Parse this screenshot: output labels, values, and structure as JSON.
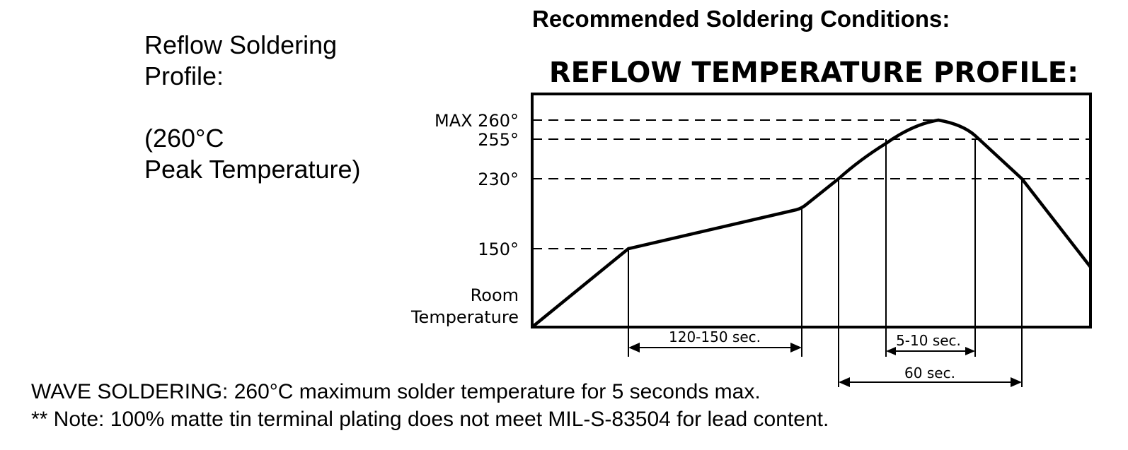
{
  "header": {
    "title": "Recommended Soldering Conditions:"
  },
  "side_note": {
    "line1": "Reflow Soldering",
    "line2": "Profile:",
    "line3": "(260°C",
    "line4": "Peak Temperature)"
  },
  "footer": {
    "wave": "WAVE SOLDERING: 260°C maximum solder temperature for 5 seconds max.",
    "note": "** Note: 100% matte tin terminal plating does not meet MIL-S-83504 for lead content."
  },
  "chart_data": {
    "type": "line",
    "title": "REFLOW TEMPERATURE PROFILE:",
    "y_levels": [
      {
        "value": 260,
        "label": "MAX 260°"
      },
      {
        "value": 255,
        "label": "255°"
      },
      {
        "value": 230,
        "label": "230°"
      },
      {
        "value": 150,
        "label": "150°"
      }
    ],
    "y_base_label": [
      "Room",
      "Temperature"
    ],
    "durations": [
      {
        "label": "120-150 sec.",
        "from": "150°",
        "to": "end of preheat"
      },
      {
        "label": "5-10 sec.",
        "above": "255°"
      },
      {
        "label": "60 sec.",
        "above": "230°"
      }
    ],
    "grid": false
  }
}
